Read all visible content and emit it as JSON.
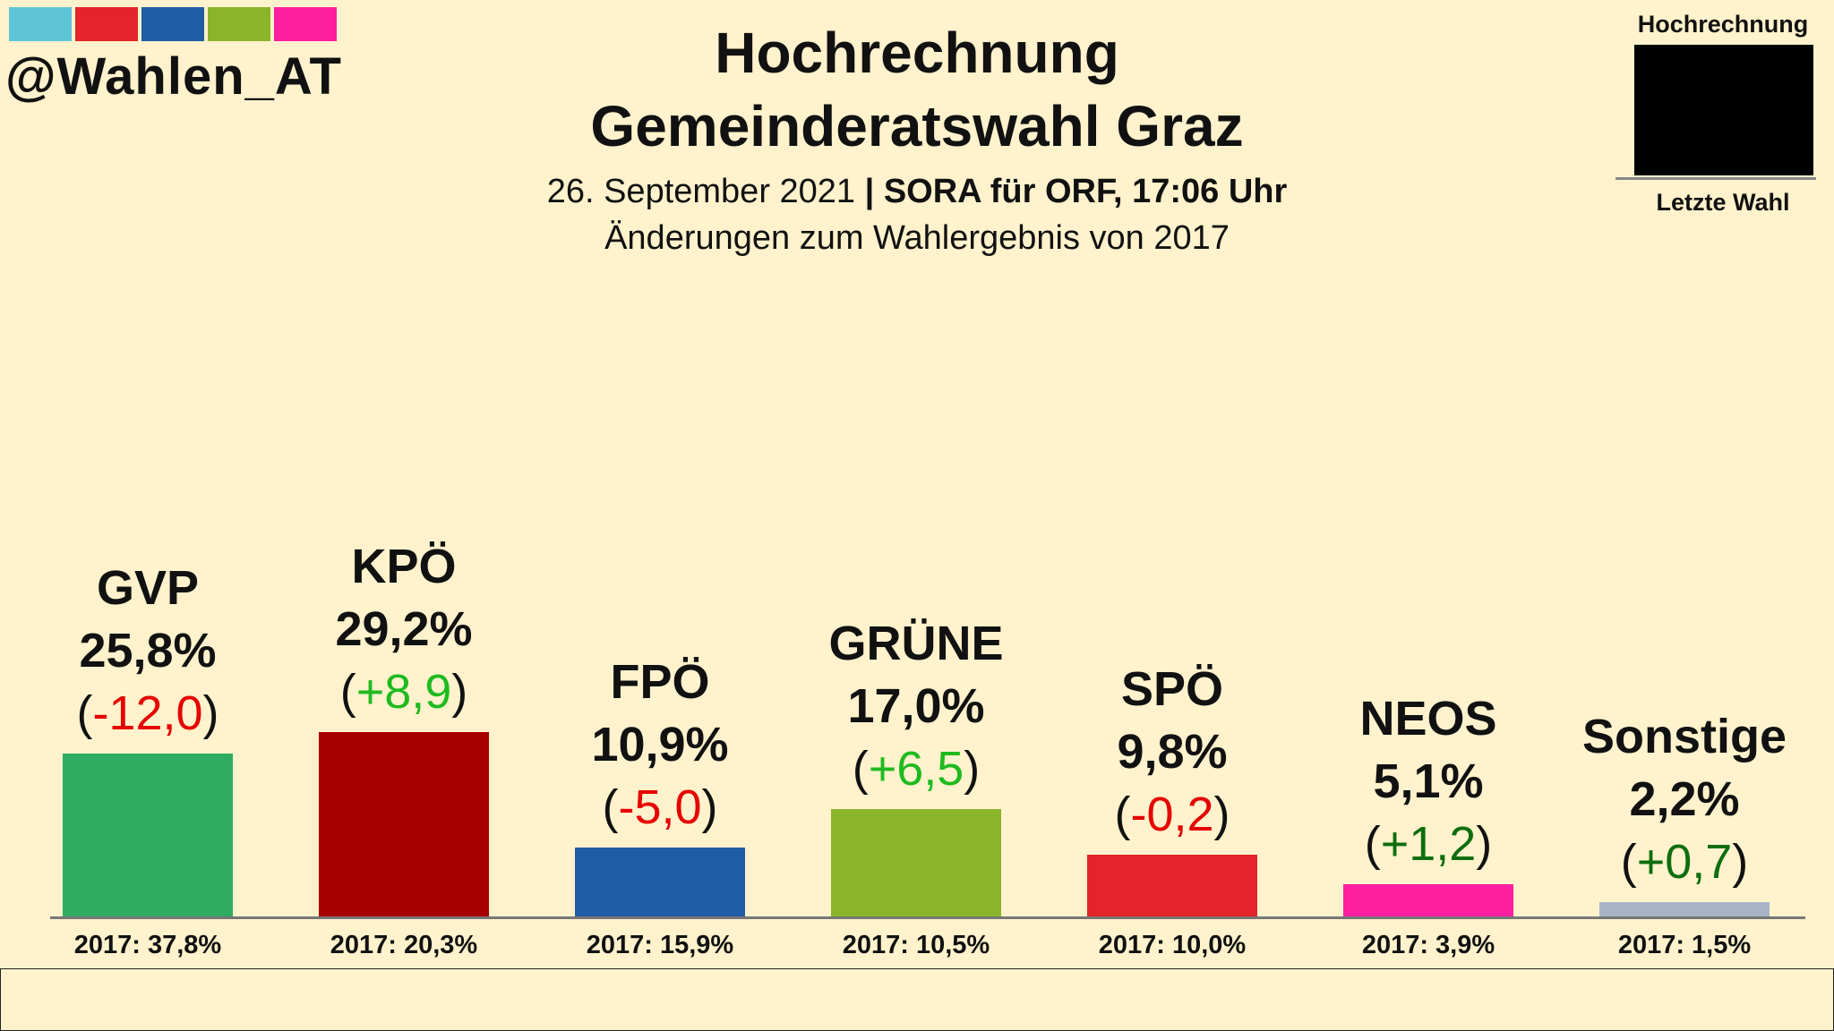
{
  "header": {
    "handle": "@Wahlen_AT",
    "stripe_colors": [
      "#5ec5d8",
      "#e3242b",
      "#1f5ca6",
      "#8ab52a",
      "#ff1fa0"
    ],
    "title_line1": "Hochrechnung",
    "title_line2": "Gemeinderatswahl Graz",
    "subtitle_date": "26. September 2021",
    "subtitle_source": "| SORA für ORF, 17:06 Uhr",
    "subtitle_note": "Änderungen zum Wahlergebnis von 2017"
  },
  "legend": {
    "top_label": "Hochrechnung",
    "bottom_label": "Letzte Wahl"
  },
  "colors": {
    "positive_change": "#1fba1f",
    "negative_change": "#e60000",
    "background": "#fff2cc"
  },
  "chart_data": {
    "type": "bar",
    "title": "Hochrechnung Gemeinderatswahl Graz",
    "categories": [
      "GVP",
      "KPÖ",
      "FPÖ",
      "GRÜNE",
      "SPÖ",
      "NEOS",
      "Sonstige"
    ],
    "values": [
      25.8,
      29.2,
      10.9,
      17.0,
      9.8,
      5.1,
      2.2
    ],
    "value_labels": [
      "25,8%",
      "29,2%",
      "10,9%",
      "17,0%",
      "9,8%",
      "5,1%",
      "2,2%"
    ],
    "change_labels": [
      "-12,0",
      "+8,9",
      "-5,0",
      "+6,5",
      "-0,2",
      "+1,2",
      "+0,7"
    ],
    "change_values": [
      -12.0,
      8.9,
      -5.0,
      6.5,
      -0.2,
      1.2,
      0.7
    ],
    "previous_values": [
      37.8,
      20.3,
      15.9,
      10.5,
      10.0,
      3.9,
      1.5
    ],
    "previous_labels": [
      "2017: 37,8%",
      "2017: 20,3%",
      "2017: 15,9%",
      "2017: 10,5%",
      "2017: 10,0%",
      "2017: 3,9%",
      "2017: 1,5%"
    ],
    "colors": [
      "#2eac62",
      "#a80000",
      "#1f5ca6",
      "#8ab52a",
      "#e3242b",
      "#ff1fa0",
      "#aab4c8"
    ],
    "change_colors": [
      "#e60000",
      "#1fba1f",
      "#e60000",
      "#1fba1f",
      "#e60000",
      "#0f6e0f",
      "#0f6e0f"
    ],
    "ylim": [
      0,
      40
    ],
    "xlabel": "",
    "ylabel": ""
  }
}
